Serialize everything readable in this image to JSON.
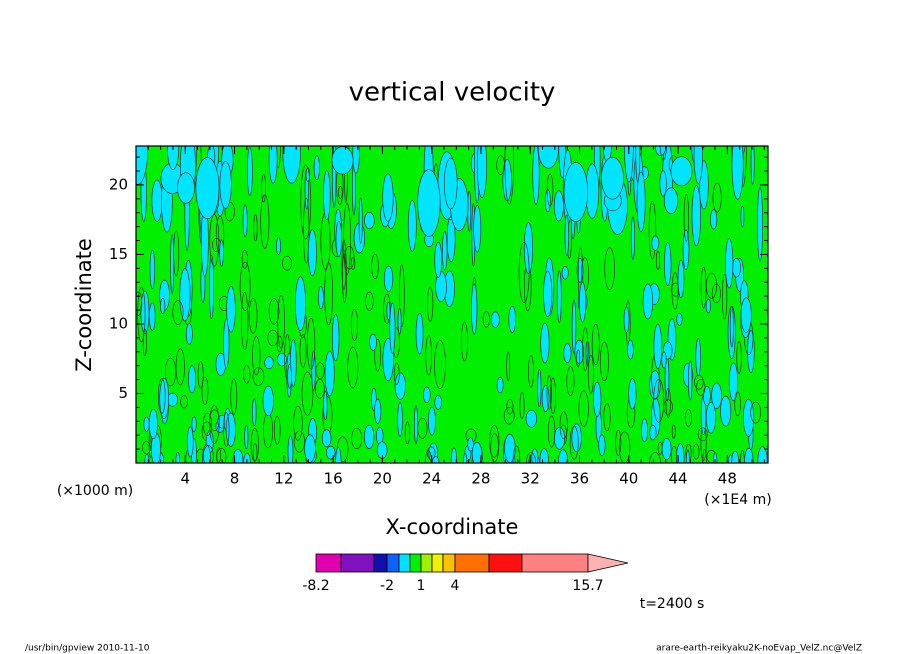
{
  "chart_data": {
    "type": "contour",
    "title": "vertical velocity",
    "x_label": "X-coordinate",
    "y_label": "Z-coordinate",
    "x_unit_label": "(×1000 m)",
    "x_unit_label_right": "(×1E4 m)",
    "xlim": [
      0,
      51.3
    ],
    "xticks": [
      4,
      8,
      12,
      16,
      20,
      24,
      28,
      32,
      36,
      40,
      44,
      48
    ],
    "ylim": [
      0,
      22.8
    ],
    "yticks": [
      5,
      10,
      15,
      20
    ],
    "colorbar": {
      "colors": [
        "#e000b0",
        "#8010c0",
        "#1010b0",
        "#1060ff",
        "#00e0ff",
        "#00f000",
        "#a0f000",
        "#f0f000",
        "#ffc000",
        "#ff7000",
        "#ff1010",
        "#ff8080",
        "#ffb0b0"
      ],
      "labels": [
        -8.2,
        -2,
        1,
        4,
        15.7
      ]
    },
    "time_label": "t=2400 s",
    "footer_left": "/usr/bin/gpview   2010-11-10",
    "footer_right": "arare-earth-reikyaku2K-noEvap_VelZ.nc@VelZ"
  }
}
